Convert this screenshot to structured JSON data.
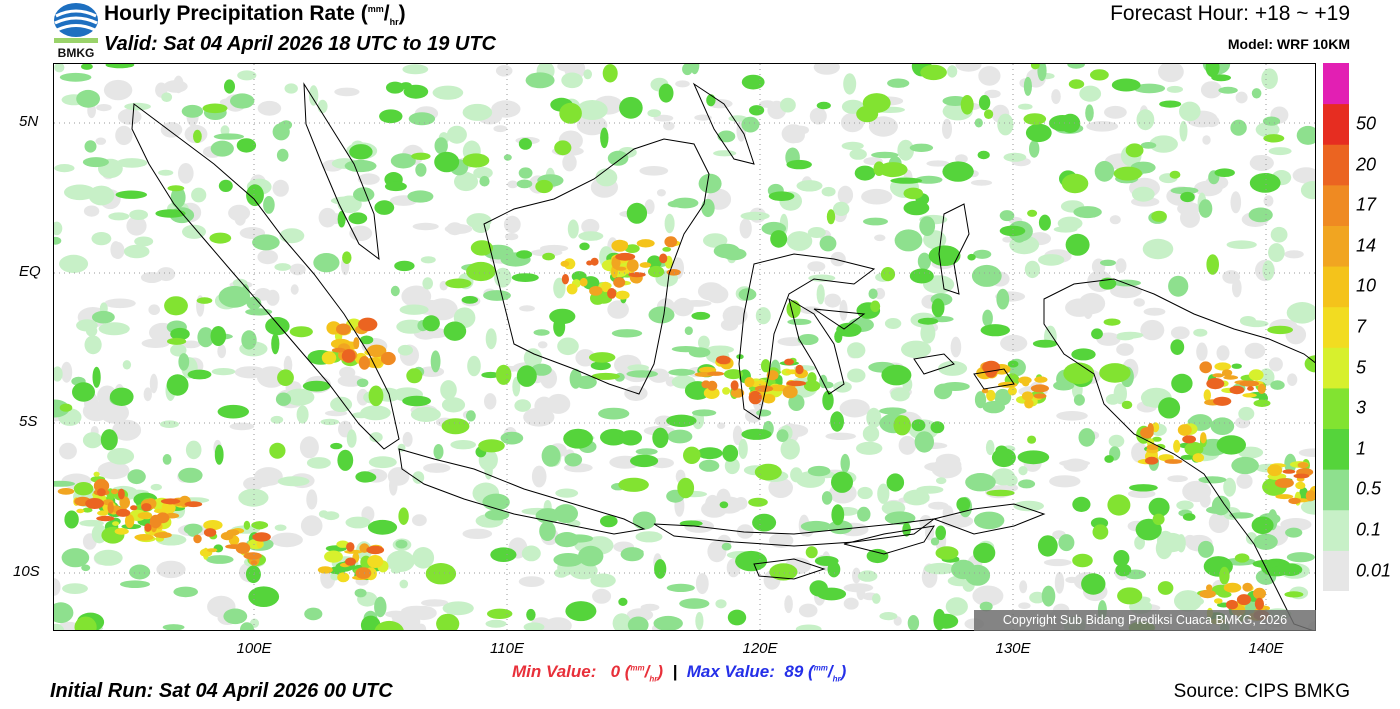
{
  "header": {
    "title_main": "Hourly Precipitation Rate (",
    "title_unit_num": "mm",
    "title_unit_sep": "/",
    "title_unit_den": "hr",
    "title_close": ")",
    "valid": "Valid: Sat 04 April 2026 18 UTC to 19 UTC",
    "forecast_hour": "Forecast Hour: +18 ~ +19",
    "model": "Model: WRF 10KM",
    "logo_text": "BMKG"
  },
  "map": {
    "lat_labels": [
      "5N",
      "EQ",
      "5S",
      "10S"
    ],
    "lon_labels": [
      "100E",
      "110E",
      "120E",
      "130E",
      "140E"
    ],
    "copyright": "Copyright Sub Bidang Prediksi Cuaca BMKG, 2026"
  },
  "colorbar": {
    "colors": [
      "#e6e6e6",
      "#c7f0c7",
      "#8ee08e",
      "#55d43b",
      "#82e331",
      "#d7f02d",
      "#f2dc21",
      "#f4c31b",
      "#f1a521",
      "#ef8a22",
      "#eb6421",
      "#e62d21",
      "#e21fb3"
    ],
    "labels": [
      "0.01",
      "0.1",
      "0.5",
      "1",
      "3",
      "5",
      "7",
      "10",
      "14",
      "17",
      "20",
      "50"
    ]
  },
  "footer": {
    "min_label": "Min Value:",
    "min_value": "0",
    "sep": "|",
    "max_label": "Max Value:",
    "max_value": "89",
    "unit_num": "mm",
    "unit_den": "hr",
    "initial_run": "Initial Run: Sat 04 April 2026 00 UTC",
    "source": "Source: CIPS BMKG"
  }
}
